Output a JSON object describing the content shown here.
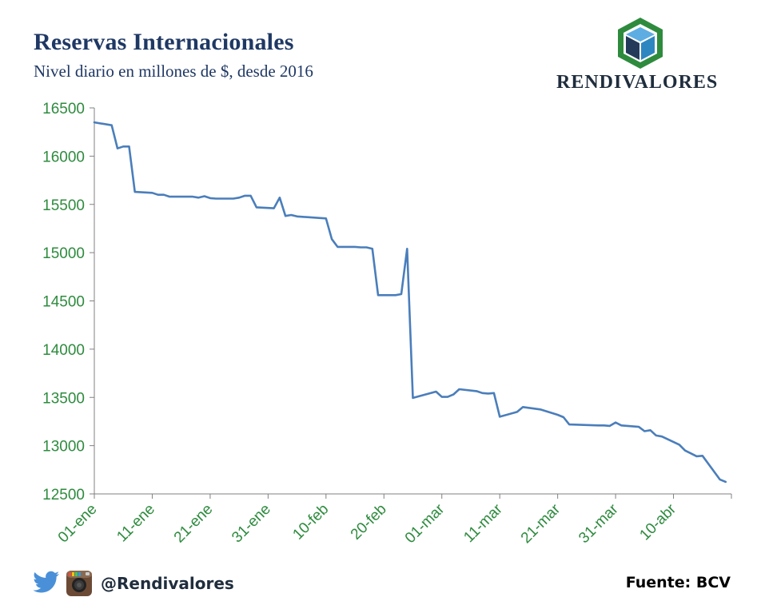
{
  "header": {
    "title": "Reservas Internacionales",
    "subtitle": "Nivel diario en millones de $, desde 2016"
  },
  "logo": {
    "text": "RENDIVALORES",
    "icon": "cube-icon",
    "colors": {
      "outer": "#2e8b3e",
      "left": "#243a5a",
      "right": "#2e86c1",
      "top": "#5dade2"
    }
  },
  "footer": {
    "handle": "@Rendivalores",
    "source": "Fuente: BCV",
    "icons": [
      "twitter-icon",
      "instagram-icon"
    ]
  },
  "colors": {
    "line": "#4a7ebb",
    "axis": "#808080",
    "tick_text": "#2e8b3e",
    "title": "#1f3864"
  },
  "chart_data": {
    "type": "line",
    "title": "Reservas Internacionales",
    "subtitle": "Nivel diario en millones de $, desde 2016",
    "xlabel": "",
    "ylabel": "",
    "ylim": [
      12500,
      16500
    ],
    "yticks": [
      12500,
      13000,
      13500,
      14000,
      14500,
      15000,
      15500,
      16000,
      16500
    ],
    "x_range": [
      "2016-01-01",
      "2016-04-20"
    ],
    "xticks": [
      {
        "date": "2016-01-01",
        "label": "01-ene"
      },
      {
        "date": "2016-01-11",
        "label": "11-ene"
      },
      {
        "date": "2016-01-21",
        "label": "21-ene"
      },
      {
        "date": "2016-01-31",
        "label": "31-ene"
      },
      {
        "date": "2016-02-10",
        "label": "10-feb"
      },
      {
        "date": "2016-02-20",
        "label": "20-feb"
      },
      {
        "date": "2016-03-01",
        "label": "01-mar"
      },
      {
        "date": "2016-03-11",
        "label": "11-mar"
      },
      {
        "date": "2016-03-21",
        "label": "21-mar"
      },
      {
        "date": "2016-03-31",
        "label": "31-mar"
      },
      {
        "date": "2016-04-10",
        "label": "10-abr"
      }
    ],
    "grid": false,
    "legend": "none",
    "series": [
      {
        "points": [
          [
            "2016-01-01",
            16350
          ],
          [
            "2016-01-04",
            16320
          ],
          [
            "2016-01-05",
            16080
          ],
          [
            "2016-01-06",
            16100
          ],
          [
            "2016-01-07",
            16100
          ],
          [
            "2016-01-08",
            15630
          ],
          [
            "2016-01-11",
            15620
          ],
          [
            "2016-01-12",
            15600
          ],
          [
            "2016-01-13",
            15600
          ],
          [
            "2016-01-14",
            15580
          ],
          [
            "2016-01-15",
            15580
          ],
          [
            "2016-01-18",
            15580
          ],
          [
            "2016-01-19",
            15570
          ],
          [
            "2016-01-20",
            15585
          ],
          [
            "2016-01-21",
            15565
          ],
          [
            "2016-01-22",
            15560
          ],
          [
            "2016-01-25",
            15560
          ],
          [
            "2016-01-26",
            15570
          ],
          [
            "2016-01-27",
            15590
          ],
          [
            "2016-01-28",
            15590
          ],
          [
            "2016-01-29",
            15470
          ],
          [
            "2016-02-01",
            15460
          ],
          [
            "2016-02-02",
            15570
          ],
          [
            "2016-02-03",
            15380
          ],
          [
            "2016-02-04",
            15390
          ],
          [
            "2016-02-05",
            15375
          ],
          [
            "2016-02-10",
            15355
          ],
          [
            "2016-02-11",
            15140
          ],
          [
            "2016-02-12",
            15060
          ],
          [
            "2016-02-15",
            15060
          ],
          [
            "2016-02-16",
            15055
          ],
          [
            "2016-02-17",
            15055
          ],
          [
            "2016-02-18",
            15040
          ],
          [
            "2016-02-19",
            14560
          ],
          [
            "2016-02-22",
            14560
          ],
          [
            "2016-02-23",
            14570
          ],
          [
            "2016-02-24",
            15040
          ],
          [
            "2016-02-25",
            13495
          ],
          [
            "2016-02-29",
            13560
          ],
          [
            "2016-03-01",
            13505
          ],
          [
            "2016-03-02",
            13505
          ],
          [
            "2016-03-03",
            13530
          ],
          [
            "2016-03-04",
            13585
          ],
          [
            "2016-03-07",
            13565
          ],
          [
            "2016-03-08",
            13545
          ],
          [
            "2016-03-09",
            13540
          ],
          [
            "2016-03-10",
            13545
          ],
          [
            "2016-03-11",
            13300
          ],
          [
            "2016-03-14",
            13350
          ],
          [
            "2016-03-15",
            13400
          ],
          [
            "2016-03-18",
            13375
          ],
          [
            "2016-03-21",
            13320
          ],
          [
            "2016-03-22",
            13295
          ],
          [
            "2016-03-23",
            13220
          ],
          [
            "2016-03-28",
            13210
          ],
          [
            "2016-03-29",
            13210
          ],
          [
            "2016-03-30",
            13205
          ],
          [
            "2016-03-31",
            13240
          ],
          [
            "2016-04-01",
            13210
          ],
          [
            "2016-04-04",
            13195
          ],
          [
            "2016-04-05",
            13150
          ],
          [
            "2016-04-06",
            13160
          ],
          [
            "2016-04-07",
            13105
          ],
          [
            "2016-04-08",
            13095
          ],
          [
            "2016-04-11",
            13010
          ],
          [
            "2016-04-12",
            12950
          ],
          [
            "2016-04-13",
            12920
          ],
          [
            "2016-04-14",
            12890
          ],
          [
            "2016-04-15",
            12895
          ],
          [
            "2016-04-18",
            12650
          ],
          [
            "2016-04-19",
            12625
          ]
        ]
      }
    ]
  }
}
